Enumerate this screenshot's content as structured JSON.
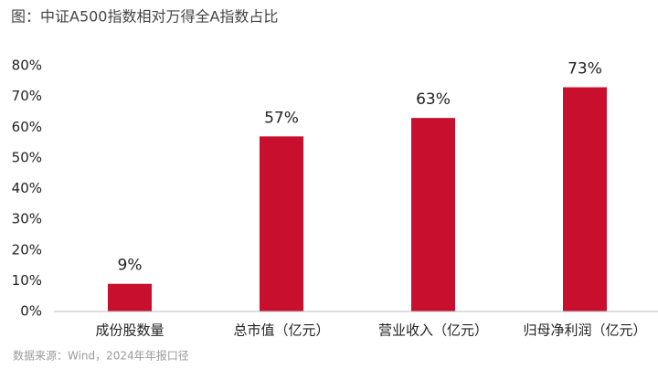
{
  "chart_data": {
    "type": "bar",
    "title": "图：中证A500指数相对万得全A指数占比",
    "source": "数据来源：Wind，2024年年报口径",
    "categories": [
      "成份股数量",
      "总市值（亿元）",
      "营业收入（亿元）",
      "归母净利润（亿元）"
    ],
    "values": [
      9,
      57,
      63,
      73
    ],
    "value_labels": [
      "9%",
      "57%",
      "63%",
      "73%"
    ],
    "color": "#c8102e",
    "ylim": [
      0,
      80
    ],
    "yticks": [
      {
        "value": 0,
        "label": "0%"
      },
      {
        "value": 10,
        "label": "10%"
      },
      {
        "value": 20,
        "label": "20%"
      },
      {
        "value": 30,
        "label": "30%"
      },
      {
        "value": 40,
        "label": "40%"
      },
      {
        "value": 50,
        "label": "50%"
      },
      {
        "value": 60,
        "label": "60%"
      },
      {
        "value": 70,
        "label": "70%"
      },
      {
        "value": 80,
        "label": "80%"
      }
    ],
    "grid": false
  }
}
